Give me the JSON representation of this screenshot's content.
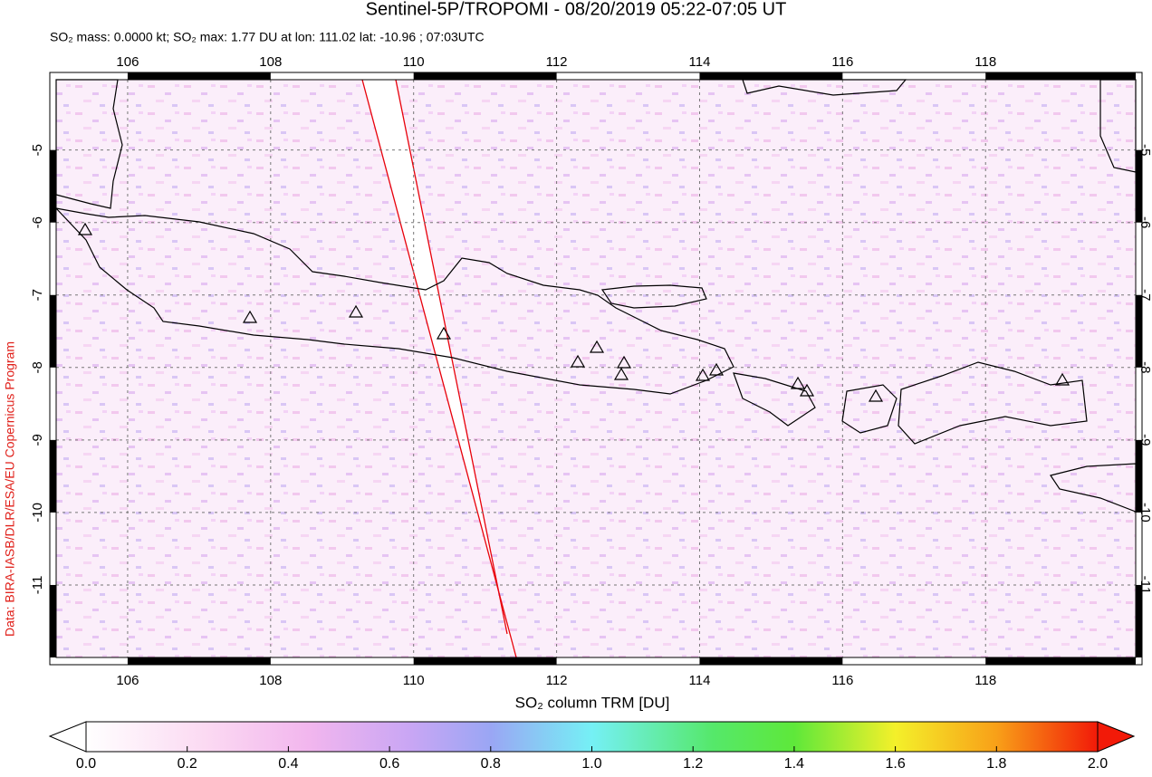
{
  "title": "Sentinel-5P/TROPOMI - 08/20/2019 05:22-07:05 UT",
  "subtitle": "SO₂ mass: 0.0000 kt; SO₂ max: 1.77 DU at lon: 111.02 lat: -10.96 ; 07:03UTC",
  "map": {
    "lon_range": [
      105,
      120.1
    ],
    "lat_range": [
      -12,
      -4.03
    ],
    "lon_ticks": [
      106,
      108,
      110,
      112,
      114,
      116,
      118
    ],
    "lat_ticks": [
      -5,
      -6,
      -7,
      -8,
      -9,
      -10,
      -11
    ]
  },
  "colorbar": {
    "label": "SO₂ column TRM [DU]",
    "range": [
      0,
      2
    ],
    "ticks": [
      {
        "value": 0,
        "label": "0.0"
      },
      {
        "value": 0.2,
        "label": "0.2"
      },
      {
        "value": 0.4,
        "label": "0.4"
      },
      {
        "value": 0.6,
        "label": "0.6"
      },
      {
        "value": 0.8,
        "label": "0.8"
      },
      {
        "value": 1,
        "label": "1.0"
      },
      {
        "value": 1.2,
        "label": "1.2"
      },
      {
        "value": 1.4,
        "label": "1.4"
      },
      {
        "value": 1.6,
        "label": "1.6"
      },
      {
        "value": 1.8,
        "label": "1.8"
      },
      {
        "value": 2,
        "label": "2.0"
      }
    ]
  },
  "credit": "Data: BIRA-IASB/DLR/ESA/EU Copernicus Program"
}
